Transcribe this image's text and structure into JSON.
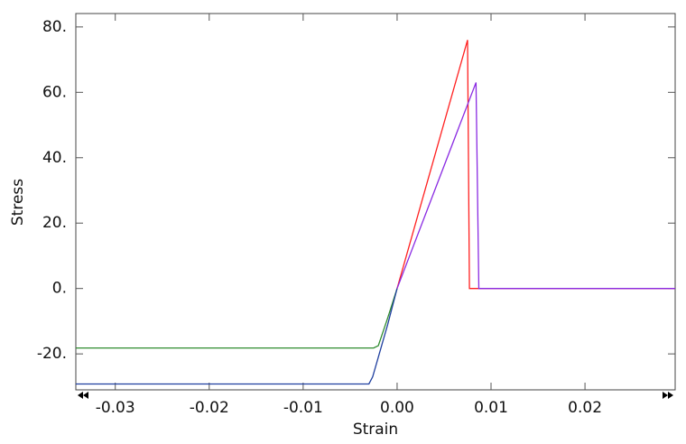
{
  "chart_data": {
    "type": "line",
    "x_label": "Strain",
    "y_label": "Stress",
    "xlim": [
      -0.0342,
      0.0296
    ],
    "ylim": [
      -31,
      84.1
    ],
    "xticks": [
      -0.03,
      -0.02,
      -0.01,
      {
        "value": 0,
        "label": "0.00"
      },
      0.01,
      0.02
    ],
    "yticks": [
      {
        "value": -20,
        "label": "-20."
      },
      {
        "value": 0,
        "label": "0."
      },
      {
        "value": 20,
        "label": "20."
      },
      {
        "value": 40,
        "label": "40."
      },
      {
        "value": 60,
        "label": "60."
      },
      {
        "value": 80,
        "label": "80."
      }
    ],
    "series": [
      {
        "color": "#2e8b2e",
        "x": [
          -0.0342,
          -0.0025,
          -0.002,
          -0.001,
          0
        ],
        "values": [
          -18.2,
          -18.2,
          -17.5,
          -9,
          0
        ]
      },
      {
        "color": "#1f3f9f",
        "x": [
          -0.0342,
          -0.003,
          -0.0026,
          -0.002,
          -0.001,
          0
        ],
        "values": [
          -29.2,
          -29.2,
          -27,
          -21,
          -11,
          0
        ]
      },
      {
        "color": "#ff2020",
        "x": [
          0,
          0.0075,
          0.0077,
          0.0296
        ],
        "values": [
          0,
          76,
          0,
          0
        ]
      },
      {
        "color": "#8a2be2",
        "x": [
          0,
          0.0084,
          0.0087,
          0.0296
        ],
        "values": [
          0,
          63,
          0,
          0
        ]
      }
    ]
  }
}
